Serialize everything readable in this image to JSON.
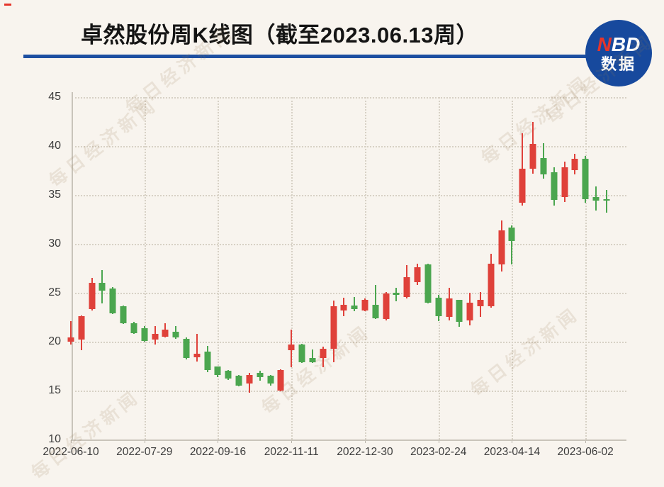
{
  "header": {
    "title": "卓然股份周K线图（截至2023.06.13周）",
    "divider_color": "#1d4fa1",
    "corner_dash_color": "#e5352b"
  },
  "logo": {
    "line1_part1": "N",
    "line1_part2": "BD",
    "line2": "数据",
    "circle_color": "#17499d",
    "n_color": "#e5352b"
  },
  "watermark": {
    "text": "每日经济新闻"
  },
  "chart_data": {
    "type": "candlestick",
    "title": "卓然股份周K线图（截至2023.06.13周）",
    "xlabel": "",
    "ylabel": "",
    "ylim": [
      10,
      45
    ],
    "y_ticks": [
      10,
      15,
      20,
      25,
      30,
      35,
      40,
      45
    ],
    "x_tick_labels": [
      "2022-06-10",
      "2022-07-29",
      "2022-09-16",
      "2022-11-11",
      "2022-12-30",
      "2023-02-24",
      "2023-04-14",
      "2023-06-02"
    ],
    "x_tick_indices": [
      0,
      7,
      14,
      21,
      28,
      35,
      42,
      49
    ],
    "grid": true,
    "legend": false,
    "up_color": "#df413a",
    "down_color": "#4ba64f",
    "ohlc_note": "weekly candles [open, high, low, close]; red=up, green=down (CN convention)",
    "ohlc": [
      [
        20.0,
        22.1,
        19.7,
        20.4
      ],
      [
        20.2,
        22.7,
        19.1,
        22.6
      ],
      [
        23.3,
        26.5,
        23.2,
        26.0
      ],
      [
        26.0,
        27.3,
        23.9,
        25.2
      ],
      [
        25.4,
        25.6,
        22.8,
        22.9
      ],
      [
        23.6,
        23.7,
        21.8,
        21.9
      ],
      [
        21.9,
        22.0,
        20.8,
        20.9
      ],
      [
        21.4,
        21.6,
        20.0,
        20.1
      ],
      [
        20.2,
        21.6,
        19.7,
        20.8
      ],
      [
        20.5,
        21.9,
        20.4,
        21.2
      ],
      [
        21.0,
        21.6,
        20.3,
        20.4
      ],
      [
        20.3,
        20.4,
        18.2,
        18.3
      ],
      [
        18.4,
        20.8,
        18.0,
        18.8
      ],
      [
        19.0,
        19.6,
        16.9,
        17.1
      ],
      [
        17.5,
        17.5,
        16.4,
        16.6
      ],
      [
        17.0,
        17.1,
        16.1,
        16.2
      ],
      [
        16.5,
        16.6,
        15.4,
        15.5
      ],
      [
        15.7,
        16.8,
        14.8,
        16.6
      ],
      [
        16.8,
        17.0,
        16.0,
        16.4
      ],
      [
        16.5,
        16.6,
        15.5,
        15.7
      ],
      [
        15.0,
        17.2,
        14.9,
        17.1
      ],
      [
        19.1,
        21.2,
        17.4,
        19.7
      ],
      [
        19.7,
        19.8,
        17.8,
        17.9
      ],
      [
        18.3,
        19.2,
        17.8,
        17.9
      ],
      [
        18.3,
        19.5,
        17.4,
        19.3
      ],
      [
        19.3,
        24.2,
        17.9,
        23.6
      ],
      [
        23.2,
        24.5,
        22.6,
        23.8
      ],
      [
        23.7,
        24.6,
        23.1,
        23.3
      ],
      [
        23.2,
        24.4,
        23.1,
        24.3
      ],
      [
        23.8,
        25.8,
        22.3,
        22.4
      ],
      [
        22.3,
        25.1,
        22.2,
        24.9
      ],
      [
        25.0,
        25.5,
        24.1,
        24.8
      ],
      [
        24.6,
        27.8,
        24.4,
        26.6
      ],
      [
        26.1,
        28.0,
        25.8,
        27.6
      ],
      [
        27.9,
        28.0,
        23.9,
        24.0
      ],
      [
        24.5,
        24.8,
        22.1,
        22.6
      ],
      [
        22.5,
        25.5,
        22.2,
        24.4
      ],
      [
        24.3,
        24.3,
        21.5,
        22.0
      ],
      [
        22.2,
        25.0,
        21.7,
        24.0
      ],
      [
        23.6,
        25.1,
        22.5,
        24.3
      ],
      [
        23.6,
        29.0,
        23.5,
        28.0
      ],
      [
        27.9,
        32.4,
        27.2,
        31.4
      ],
      [
        31.7,
        31.9,
        27.9,
        30.3
      ],
      [
        34.2,
        41.3,
        33.9,
        37.7
      ],
      [
        37.7,
        42.5,
        37.2,
        40.2
      ],
      [
        38.8,
        40.3,
        36.7,
        37.1
      ],
      [
        37.3,
        37.8,
        33.9,
        34.5
      ],
      [
        34.8,
        38.4,
        34.3,
        37.8
      ],
      [
        37.5,
        39.2,
        37.1,
        38.7
      ],
      [
        38.7,
        39.0,
        34.2,
        34.6
      ],
      [
        34.8,
        35.9,
        33.4,
        34.4
      ],
      [
        34.6,
        35.5,
        33.2,
        34.4
      ]
    ]
  }
}
